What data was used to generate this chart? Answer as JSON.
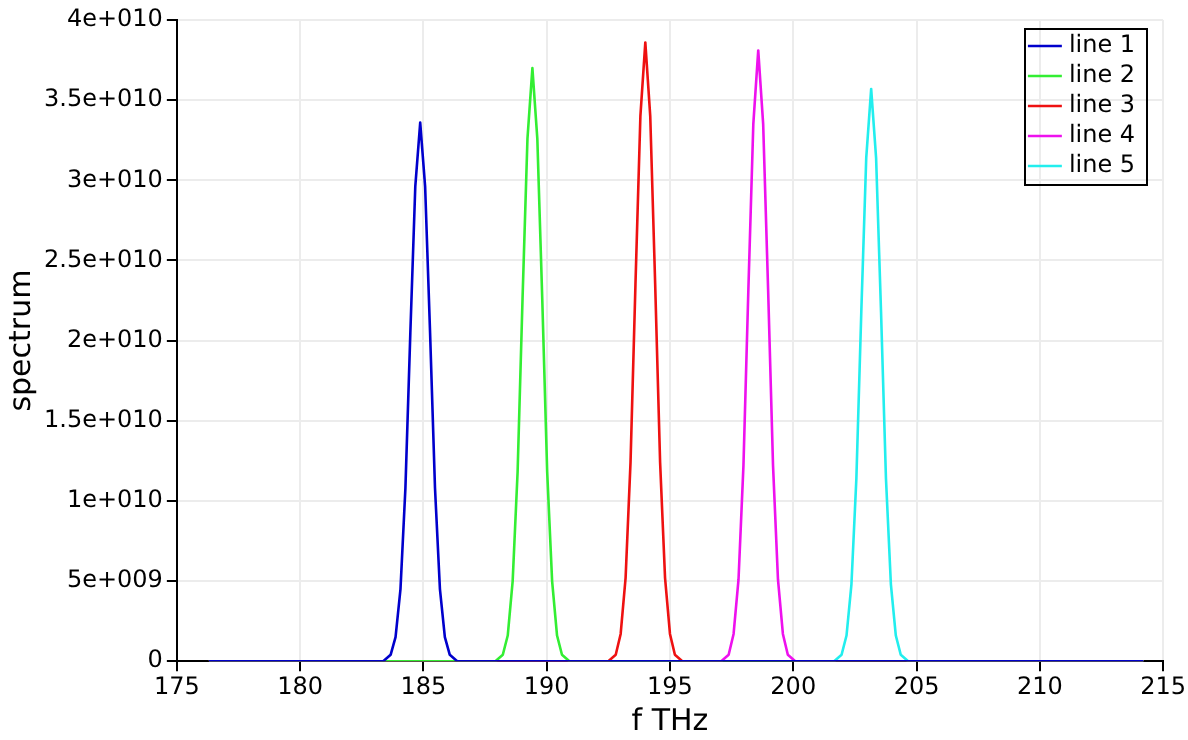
{
  "chart_data": {
    "type": "line",
    "xlabel": "f THz",
    "ylabel": "spectrum",
    "xlim": [
      175,
      215
    ],
    "xticks": [
      175,
      180,
      185,
      190,
      195,
      200,
      205,
      210,
      215
    ],
    "ylim": [
      0,
      40000000000
    ],
    "yticks": [
      0,
      {
        "value": 5000000000.0,
        "label": "5e+009"
      },
      {
        "value": 10000000000.0,
        "label": "1e+010"
      },
      {
        "value": 15000000000.0,
        "label": "1.5e+010"
      },
      {
        "value": 20000000000.0,
        "label": "2e+010"
      },
      {
        "value": 25000000000.0,
        "label": "2.5e+010"
      },
      {
        "value": 30000000000.0,
        "label": "3e+010"
      },
      {
        "value": 35000000000.0,
        "label": "3.5e+010"
      },
      {
        "value": 40000000000.0,
        "label": "4e+010"
      }
    ],
    "grid": true,
    "legend": "top right",
    "marker": "none",
    "line_style": "solid",
    "series": [
      {
        "name": "line 1",
        "color": "#0000cc",
        "x": [
          176.3,
          183.37,
          183.67,
          183.87,
          184.07,
          184.27,
          184.47,
          184.67,
          184.87,
          185.07,
          185.27,
          185.47,
          185.67,
          185.87,
          186.07,
          186.37,
          214.2
        ],
        "values": [
          0,
          0,
          400000000.0,
          1500000000.0,
          4500000000.0,
          10800000000.0,
          20500000000.0,
          29600000000.0,
          33600000000.0,
          29600000000.0,
          20500000000.0,
          10800000000.0,
          4500000000.0,
          1500000000.0,
          400000000.0,
          0,
          0
        ]
      },
      {
        "name": "line 2",
        "color": "#33ee33",
        "x": [
          176.3,
          187.92,
          188.22,
          188.42,
          188.62,
          188.82,
          189.02,
          189.22,
          189.42,
          189.62,
          189.82,
          190.02,
          190.22,
          190.42,
          190.62,
          190.92,
          214.2
        ],
        "values": [
          0,
          0,
          400000000.0,
          1600000000.0,
          5000000000.0,
          11800000000.0,
          22600000000.0,
          32600000000.0,
          37000000000.0,
          32600000000.0,
          22600000000.0,
          11800000000.0,
          5000000000.0,
          1600000000.0,
          400000000.0,
          0,
          0
        ]
      },
      {
        "name": "line 3",
        "color": "#ee1111",
        "x": [
          176.3,
          192.5,
          192.8,
          193,
          193.2,
          193.4,
          193.6,
          193.8,
          194,
          194.2,
          194.4,
          194.6,
          194.8,
          195,
          195.2,
          195.5,
          214.2
        ],
        "values": [
          0,
          0,
          400000000.0,
          1700000000.0,
          5200000000.0,
          12400000000.0,
          23500000000.0,
          34000000000.0,
          38600000000.0,
          34000000000.0,
          23500000000.0,
          12400000000.0,
          5200000000.0,
          1700000000.0,
          400000000.0,
          0,
          0
        ]
      },
      {
        "name": "line 4",
        "color": "#ee11ee",
        "x": [
          176.3,
          197.08,
          197.38,
          197.58,
          197.78,
          197.98,
          198.18,
          198.38,
          198.58,
          198.78,
          198.98,
          199.18,
          199.38,
          199.58,
          199.78,
          200.08,
          214.2
        ],
        "values": [
          0,
          0,
          400000000.0,
          1700000000.0,
          5100000000.0,
          12200000000.0,
          23200000000.0,
          33500000000.0,
          38100000000.0,
          33500000000.0,
          23200000000.0,
          12200000000.0,
          5100000000.0,
          1700000000.0,
          400000000.0,
          0,
          0
        ]
      },
      {
        "name": "line 5",
        "color": "#22eeee",
        "x": [
          176.3,
          201.66,
          201.96,
          202.16,
          202.36,
          202.56,
          202.76,
          202.96,
          203.16,
          203.36,
          203.56,
          203.76,
          203.96,
          204.16,
          204.36,
          204.66,
          214.2
        ],
        "values": [
          0,
          0,
          400000000.0,
          1600000000.0,
          4800000000.0,
          11400000000.0,
          21800000000.0,
          31400000000.0,
          35700000000.0,
          31400000000.0,
          21800000000.0,
          11400000000.0,
          4800000000.0,
          1600000000.0,
          400000000.0,
          0,
          0
        ]
      }
    ]
  }
}
